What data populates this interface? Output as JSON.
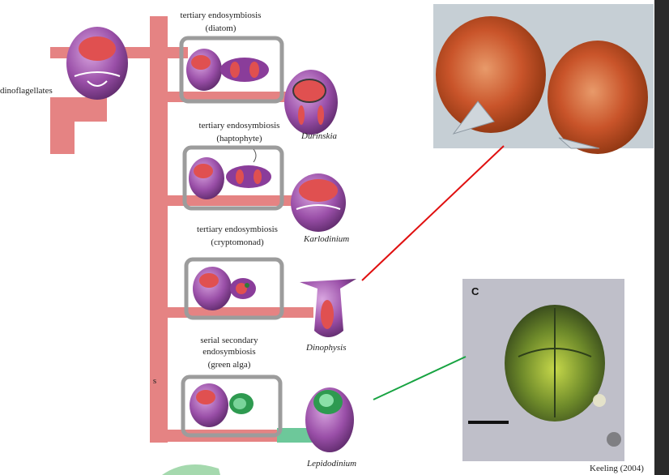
{
  "labels": {
    "dino": "dinoflagellates",
    "diatom_l1": "tertiary endosymbiosis",
    "diatom_l2": "(diatom)",
    "hapto_l1": "tertiary endosymbiosis",
    "hapto_l2": "(haptophyte)",
    "crypto_l1": "tertiary endosymbiosis",
    "crypto_l2": "(cryptomonad)",
    "green_l1": "serial secondary",
    "green_l2": "endosymbiosis",
    "green_l3": "(green alga)",
    "stub_s": "s"
  },
  "species": {
    "durinskia": "Durinskia",
    "karlodinium": "Karlodinium",
    "dinophysis": "Dinophysis",
    "lepidodinium": "Lepidodinium"
  },
  "photo_panel_letter": "C",
  "citation": "Keeling (2004)",
  "colors": {
    "trunk": "#e58383",
    "green_branch": "#6dc89a",
    "cell_purple": "#9a4fa8",
    "plastid_red": "#e05050",
    "box_gray": "#9c9c9c",
    "red_line": "#e01010",
    "green_line": "#17a341"
  }
}
